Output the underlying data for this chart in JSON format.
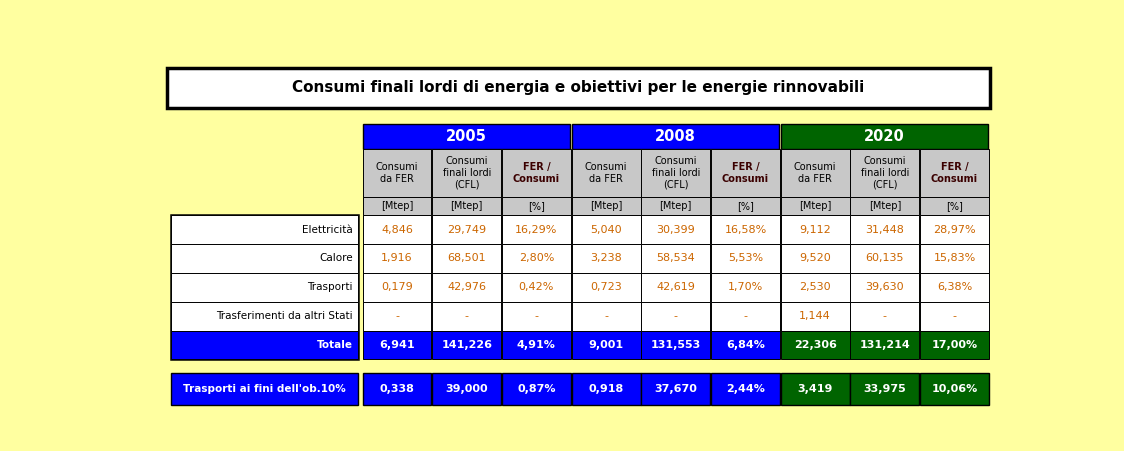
{
  "title": "Consumi finali lordi di energia e obiettivi per le energie rinnovabili",
  "background_color": "#FFFFA0",
  "years": [
    "2005",
    "2008",
    "2020"
  ],
  "year_colors": [
    "#0000FF",
    "#0000FF",
    "#006400"
  ],
  "col_headers": [
    "Consumi\nda FER",
    "Consumi\nfinali lordi\n(CFL)",
    "FER /\nConsumi"
  ],
  "col_units": [
    "[Mtep]",
    "[Mtep]",
    "[%]"
  ],
  "row_labels": [
    "Elettricità",
    "Calore",
    "Trasporti",
    "Trasferimenti da altri Stati",
    "Totale"
  ],
  "data_2005": [
    [
      "4,846",
      "29,749",
      "16,29%"
    ],
    [
      "1,916",
      "68,501",
      "2,80%"
    ],
    [
      "0,179",
      "42,976",
      "0,42%"
    ],
    [
      "-",
      "-",
      "-"
    ],
    [
      "6,941",
      "141,226",
      "4,91%"
    ]
  ],
  "data_2008": [
    [
      "5,040",
      "30,399",
      "16,58%"
    ],
    [
      "3,238",
      "58,534",
      "5,53%"
    ],
    [
      "0,723",
      "42,619",
      "1,70%"
    ],
    [
      "-",
      "-",
      "-"
    ],
    [
      "9,001",
      "131,553",
      "6,84%"
    ]
  ],
  "data_2020": [
    [
      "9,112",
      "31,448",
      "28,97%"
    ],
    [
      "9,520",
      "60,135",
      "15,83%"
    ],
    [
      "2,530",
      "39,630",
      "6,38%"
    ],
    [
      "1,144",
      "-",
      "-"
    ],
    [
      "22,306",
      "131,214",
      "17,00%"
    ]
  ],
  "totale_colors": [
    "#0000FF",
    "#0000FF",
    "#006400"
  ],
  "bottom_row_label": "Trasporti ai fini dell'ob.10%",
  "bottom_2005": [
    "0,338",
    "39,000",
    "0,87%"
  ],
  "bottom_2008": [
    "0,918",
    "37,670",
    "2,44%"
  ],
  "bottom_2020": [
    "3,419",
    "33,975",
    "10,06%"
  ],
  "bot_colors": [
    "#0000FF",
    "#0000FF",
    "#006400"
  ],
  "blue": "#0000FF",
  "green": "#006400",
  "cell_gray": "#C8C8C8",
  "data_text_color": "#CC6600",
  "fer_header_color": "#3B0000",
  "title_text_color": "#000000",
  "label_text_color": "#000000"
}
